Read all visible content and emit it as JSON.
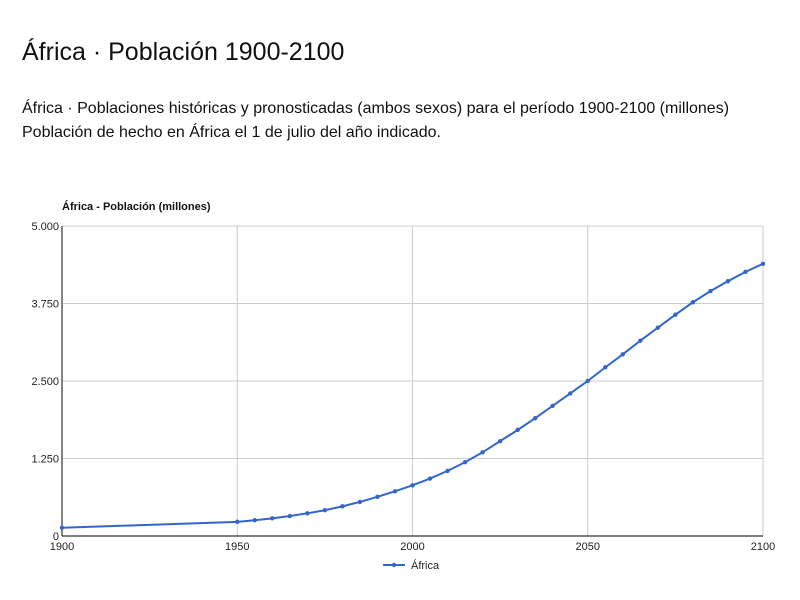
{
  "page": {
    "title": "África · Población 1900-2100",
    "subtitle": "África · Poblaciones históricas y pronosticadas (ambos sexos) para el período 1900-2100 (millones) Población de hecho en África el 1 de julio del año indicado."
  },
  "chart_data": {
    "type": "line",
    "title": "África - Población (millones)",
    "xlabel": "",
    "ylabel": "",
    "xlim": [
      1900,
      2100
    ],
    "ylim": [
      0,
      5000
    ],
    "x_ticks": [
      1900,
      1950,
      2000,
      2050,
      2100
    ],
    "x_tick_labels": [
      "1900",
      "1950",
      "2000",
      "2050",
      "2100"
    ],
    "y_ticks": [
      0,
      1250,
      2500,
      3750,
      5000
    ],
    "y_tick_labels": [
      "0",
      "1.250",
      "2.500",
      "3.750",
      "5.000"
    ],
    "grid": true,
    "legend_position": "bottom",
    "series": [
      {
        "name": "África",
        "color": "#3366cc",
        "points": [
          [
            1900,
            133
          ],
          [
            1950,
            228
          ],
          [
            1955,
            254
          ],
          [
            1960,
            285
          ],
          [
            1965,
            322
          ],
          [
            1970,
            366
          ],
          [
            1975,
            416
          ],
          [
            1980,
            478
          ],
          [
            1985,
            550
          ],
          [
            1990,
            632
          ],
          [
            1995,
            721
          ],
          [
            2000,
            818
          ],
          [
            2005,
            926
          ],
          [
            2010,
            1050
          ],
          [
            2015,
            1190
          ],
          [
            2020,
            1350
          ],
          [
            2025,
            1530
          ],
          [
            2030,
            1710
          ],
          [
            2035,
            1900
          ],
          [
            2040,
            2100
          ],
          [
            2045,
            2300
          ],
          [
            2050,
            2500
          ],
          [
            2055,
            2720
          ],
          [
            2060,
            2930
          ],
          [
            2065,
            3150
          ],
          [
            2070,
            3360
          ],
          [
            2075,
            3570
          ],
          [
            2080,
            3770
          ],
          [
            2085,
            3950
          ],
          [
            2090,
            4110
          ],
          [
            2095,
            4260
          ],
          [
            2100,
            4390
          ]
        ]
      }
    ]
  }
}
